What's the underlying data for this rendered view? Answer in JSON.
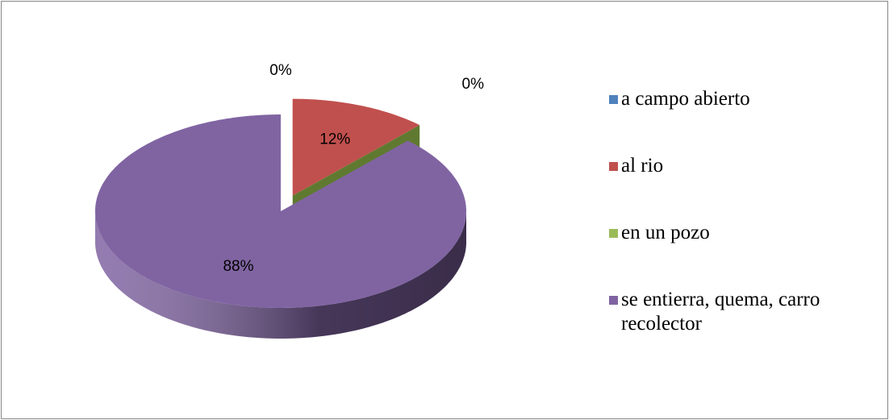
{
  "chart_data": {
    "type": "pie",
    "categories": [
      "a campo abierto",
      "al rio",
      "en un pozo",
      "se entierra, quema, carro recolector"
    ],
    "values": [
      0,
      12,
      0,
      88
    ],
    "value_labels": [
      "0%",
      "12%",
      "0%",
      "88%"
    ],
    "colors": [
      "#4f81bd",
      "#c0504d",
      "#9bbb59",
      "#8064a2"
    ],
    "legend": "right"
  }
}
